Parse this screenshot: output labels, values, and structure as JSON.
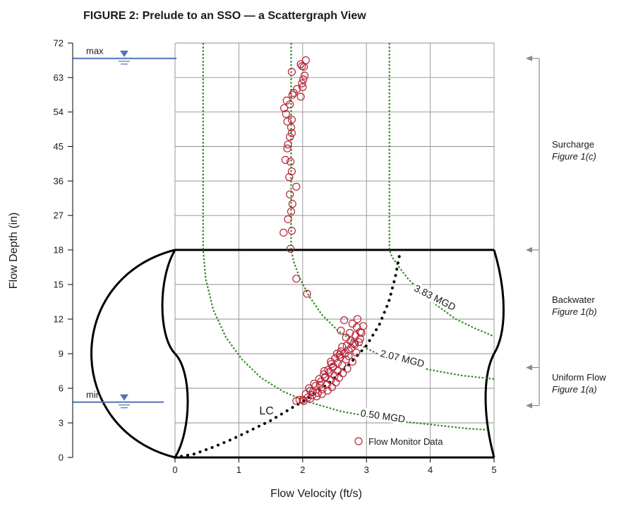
{
  "chart_data": {
    "type": "scatter",
    "title": "FIGURE 2:  Prelude to an SSO — a Scattergraph View",
    "xlabel": "Flow Velocity (ft/s)",
    "ylabel": "Flow Depth (in)",
    "xlim": [
      0,
      5
    ],
    "ylim": [
      0,
      72
    ],
    "x_ticks": [
      "0",
      "1",
      "2",
      "3",
      "4",
      "5"
    ],
    "y_ticks": [
      "0",
      "3",
      "6",
      "9",
      "12",
      "15",
      "18",
      "27",
      "36",
      "45",
      "54",
      "63",
      "72"
    ],
    "y_axis_note": "axis is stretched between 0 and 18 in (3 in per grid step) and compressed above 18 in (9 in per grid step)",
    "grid": true,
    "legend": {
      "label": "Flow Monitor Data",
      "position": "bottom-right"
    },
    "series": [
      {
        "name": "Flow Monitor Data",
        "style": "open-circle",
        "color": "#b5243a",
        "points": [
          [
            2.05,
            67.5
          ],
          [
            1.97,
            66.5
          ],
          [
            1.99,
            66.0
          ],
          [
            2.02,
            65.8
          ],
          [
            1.83,
            64.5
          ],
          [
            2.03,
            63.5
          ],
          [
            2.01,
            62.5
          ],
          [
            1.99,
            61.5
          ],
          [
            2.0,
            60.5
          ],
          [
            1.91,
            60.0
          ],
          [
            1.86,
            59.0
          ],
          [
            1.84,
            58.5
          ],
          [
            1.97,
            58.0
          ],
          [
            1.75,
            57.0
          ],
          [
            1.8,
            56.0
          ],
          [
            1.71,
            55.0
          ],
          [
            1.74,
            53.5
          ],
          [
            1.83,
            52.0
          ],
          [
            1.76,
            51.5
          ],
          [
            1.82,
            50.0
          ],
          [
            1.83,
            48.5
          ],
          [
            1.8,
            47.5
          ],
          [
            1.77,
            45.5
          ],
          [
            1.76,
            44.5
          ],
          [
            1.73,
            41.5
          ],
          [
            1.81,
            41.0
          ],
          [
            1.83,
            38.5
          ],
          [
            1.79,
            37.0
          ],
          [
            1.9,
            34.5
          ],
          [
            1.8,
            32.5
          ],
          [
            1.84,
            30.0
          ],
          [
            1.82,
            28.0
          ],
          [
            1.77,
            26.0
          ],
          [
            1.83,
            23.0
          ],
          [
            1.7,
            22.5
          ],
          [
            1.81,
            18.3
          ],
          [
            1.9,
            15.5
          ],
          [
            2.07,
            14.2
          ],
          [
            2.65,
            11.9
          ],
          [
            2.86,
            12.0
          ],
          [
            2.78,
            11.6
          ],
          [
            2.85,
            11.3
          ],
          [
            2.6,
            11.0
          ],
          [
            2.92,
            10.8
          ],
          [
            2.83,
            10.6
          ],
          [
            2.9,
            10.3
          ],
          [
            2.88,
            10.0
          ],
          [
            2.82,
            9.8
          ],
          [
            2.76,
            9.5
          ],
          [
            2.84,
            9.1
          ],
          [
            2.72,
            8.8
          ],
          [
            2.68,
            8.5
          ],
          [
            2.78,
            8.3
          ],
          [
            2.62,
            8.0
          ],
          [
            2.7,
            7.7
          ],
          [
            2.55,
            7.5
          ],
          [
            2.63,
            7.3
          ],
          [
            2.5,
            7.1
          ],
          [
            2.57,
            6.9
          ],
          [
            2.44,
            6.7
          ],
          [
            2.52,
            6.5
          ],
          [
            2.38,
            6.3
          ],
          [
            2.46,
            6.1
          ],
          [
            2.31,
            5.9
          ],
          [
            2.39,
            5.8
          ],
          [
            2.24,
            5.6
          ],
          [
            2.3,
            5.5
          ],
          [
            2.15,
            5.4
          ],
          [
            2.22,
            5.3
          ],
          [
            2.08,
            5.2
          ],
          [
            2.12,
            5.1
          ],
          [
            2.0,
            5.0
          ],
          [
            1.95,
            5.0
          ],
          [
            2.02,
            4.9
          ],
          [
            1.9,
            4.9
          ],
          [
            2.72,
            9.3
          ],
          [
            2.66,
            9.0
          ],
          [
            2.59,
            8.7
          ],
          [
            2.55,
            8.2
          ],
          [
            2.48,
            7.9
          ],
          [
            2.42,
            7.4
          ],
          [
            2.36,
            7.0
          ],
          [
            2.29,
            6.6
          ],
          [
            2.2,
            6.2
          ],
          [
            2.12,
            5.8
          ],
          [
            2.05,
            5.5
          ],
          [
            2.75,
            10.1
          ],
          [
            2.69,
            9.7
          ],
          [
            2.8,
            9.9
          ],
          [
            2.6,
            9.2
          ],
          [
            2.51,
            8.6
          ],
          [
            2.45,
            8.1
          ],
          [
            2.4,
            7.6
          ],
          [
            2.33,
            7.2
          ],
          [
            2.26,
            6.8
          ],
          [
            2.18,
            6.4
          ],
          [
            2.1,
            6.0
          ],
          [
            2.68,
            10.4
          ],
          [
            2.74,
            10.8
          ],
          [
            2.58,
            8.9
          ],
          [
            2.47,
            7.8
          ],
          [
            2.35,
            6.9
          ],
          [
            2.27,
            6.3
          ],
          [
            2.16,
            5.7
          ],
          [
            2.9,
            10.9
          ],
          [
            2.95,
            11.4
          ],
          [
            2.62,
            9.6
          ],
          [
            2.54,
            9.0
          ],
          [
            2.44,
            8.3
          ],
          [
            2.34,
            7.5
          ]
        ]
      },
      {
        "name": "3.83 MGD",
        "style": "dashed-green",
        "color": "#2e8b1e",
        "points": [
          [
            3.36,
            72
          ],
          [
            3.36,
            18
          ],
          [
            3.4,
            17.4
          ],
          [
            3.5,
            16.6
          ],
          [
            3.65,
            15.5
          ],
          [
            3.85,
            14.4
          ],
          [
            4.1,
            13.2
          ],
          [
            4.4,
            12.0
          ],
          [
            4.7,
            11.2
          ],
          [
            5.0,
            10.5
          ]
        ]
      },
      {
        "name": "2.07 MGD",
        "style": "dashed-green",
        "color": "#2e8b1e",
        "points": [
          [
            1.82,
            72
          ],
          [
            1.82,
            18
          ],
          [
            1.86,
            17.0
          ],
          [
            1.95,
            15.6
          ],
          [
            2.1,
            14.0
          ],
          [
            2.3,
            12.4
          ],
          [
            2.55,
            11.0
          ],
          [
            2.85,
            9.9
          ],
          [
            3.2,
            8.9
          ],
          [
            3.6,
            8.1
          ],
          [
            4.0,
            7.6
          ],
          [
            4.5,
            7.1
          ],
          [
            5.0,
            6.8
          ]
        ]
      },
      {
        "name": "0.50 MGD",
        "style": "dashed-green",
        "color": "#2e8b1e",
        "points": [
          [
            0.44,
            72
          ],
          [
            0.44,
            18
          ],
          [
            0.48,
            15.5
          ],
          [
            0.6,
            12.8
          ],
          [
            0.8,
            10.4
          ],
          [
            1.05,
            8.5
          ],
          [
            1.35,
            6.9
          ],
          [
            1.7,
            5.7
          ],
          [
            2.1,
            4.8
          ],
          [
            2.6,
            4.0
          ],
          [
            3.1,
            3.5
          ],
          [
            3.6,
            3.1
          ],
          [
            4.1,
            2.8
          ],
          [
            4.6,
            2.5
          ],
          [
            4.9,
            2.4
          ]
        ]
      },
      {
        "name": "LC",
        "style": "dotted-black",
        "color": "#000000",
        "points": [
          [
            0.0,
            0.0
          ],
          [
            0.3,
            0.3
          ],
          [
            0.6,
            0.9
          ],
          [
            0.9,
            1.6
          ],
          [
            1.2,
            2.4
          ],
          [
            1.5,
            3.2
          ],
          [
            1.8,
            4.2
          ],
          [
            2.1,
            5.2
          ],
          [
            2.4,
            6.4
          ],
          [
            2.7,
            7.9
          ],
          [
            3.0,
            9.7
          ],
          [
            3.2,
            11.5
          ],
          [
            3.35,
            13.5
          ],
          [
            3.45,
            15.6
          ],
          [
            3.52,
            17.6
          ]
        ]
      }
    ],
    "annotations": [
      {
        "text": "3.83 MGD",
        "x": 4.05,
        "y": 13.6
      },
      {
        "text": "2.07 MGD",
        "x": 3.55,
        "y": 8.3
      },
      {
        "text": "0.50 MGD",
        "x": 3.25,
        "y": 3.3
      },
      {
        "text": "LC",
        "x": 1.32,
        "y": 4.1
      },
      {
        "text": "max",
        "y": 68
      },
      {
        "text": "min",
        "y": 4.8
      }
    ],
    "side_labels": [
      {
        "title": "Surcharge",
        "figure": "Figure 1(c)",
        "range": [
          18,
          68
        ]
      },
      {
        "title": "Backwater",
        "figure": "Figure 1(b)",
        "range": [
          7.8,
          18
        ]
      },
      {
        "title": "Uniform Flow",
        "figure": "Figure 1(a)",
        "range": [
          4.5,
          7.8
        ]
      }
    ]
  }
}
